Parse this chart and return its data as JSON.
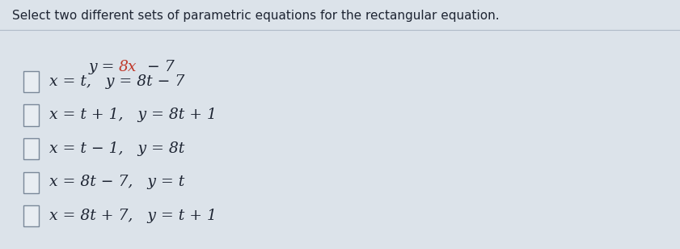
{
  "title": "Select two different sets of parametric equations for the rectangular equation.",
  "equation_parts": [
    {
      "text": "y = ",
      "color": "#2d2d2d",
      "italic": true
    },
    {
      "text": "8x",
      "color": "#c0392b",
      "italic": true
    },
    {
      "text": " − 7",
      "color": "#2d2d2d",
      "italic": true
    }
  ],
  "options": [
    "x = t,   y = 8t − 7",
    "x = t + 1,   y = 8t + 1",
    "x = t − 1,   y = 8t",
    "x = 8t − 7,   y = t",
    "x = 8t + 7,   y = t + 1"
  ],
  "bg_color": "#dce3ea",
  "text_color": "#1e2533",
  "title_fontsize": 11.0,
  "equation_fontsize": 13.5,
  "option_fontsize": 13.5,
  "figwidth": 8.41,
  "figheight": 3.08,
  "top_bar_color": "#c8d0da",
  "checkbox_edge_color": "#7a8899",
  "checkbox_face_color": "#e8edf2"
}
